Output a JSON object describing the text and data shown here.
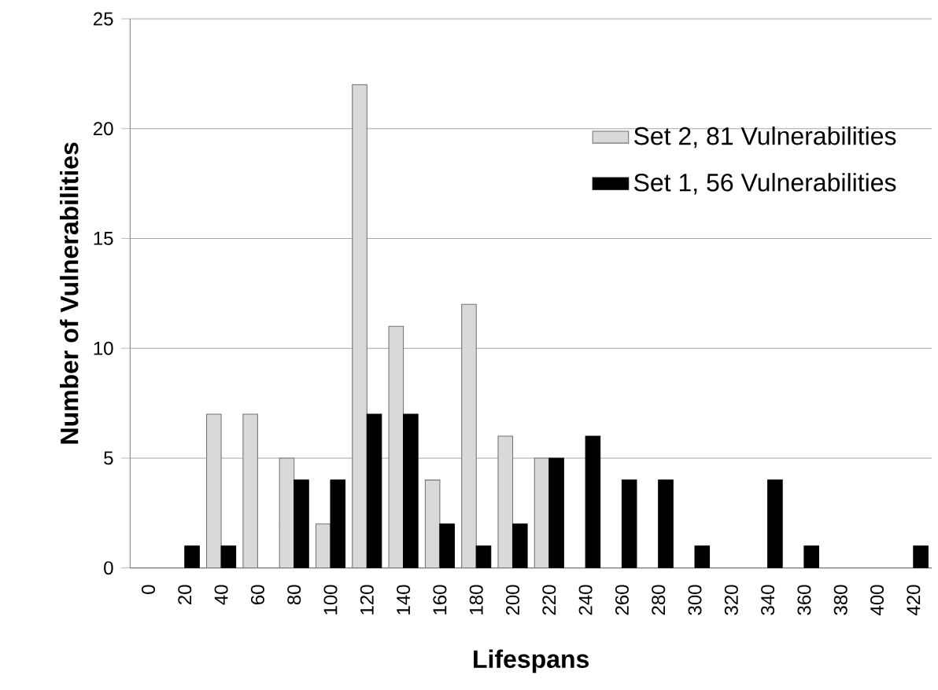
{
  "chart_data": {
    "type": "bar",
    "xlabel": "Lifespans",
    "ylabel": "Number of Vulnerabilities",
    "categories": [
      "0",
      "20",
      "40",
      "60",
      "80",
      "100",
      "120",
      "140",
      "160",
      "180",
      "200",
      "220",
      "240",
      "260",
      "280",
      "300",
      "320",
      "340",
      "360",
      "380",
      "400",
      "420"
    ],
    "series": [
      {
        "name": "Set 2, 81 Vulnerabilities",
        "color": "#d9d9d9",
        "values": [
          0,
          0,
          7,
          7,
          5,
          2,
          22,
          11,
          4,
          12,
          6,
          5,
          0,
          0,
          0,
          0,
          0,
          0,
          0,
          0,
          0,
          0
        ]
      },
      {
        "name": "Set 1, 56 Vulnerabilities",
        "color": "#000000",
        "values": [
          0,
          1,
          1,
          0,
          4,
          4,
          7,
          7,
          2,
          1,
          2,
          5,
          6,
          4,
          4,
          1,
          0,
          4,
          1,
          0,
          0,
          1
        ]
      }
    ],
    "ylim": [
      0,
      25
    ],
    "yticks": [
      0,
      5,
      10,
      15,
      20,
      25
    ],
    "grid": "y",
    "legend": "top right"
  }
}
